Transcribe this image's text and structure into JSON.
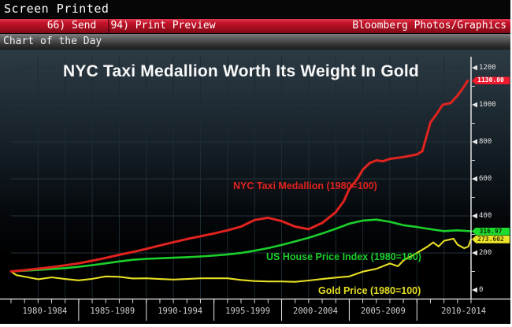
{
  "window": {
    "status_text": "Screen Printed"
  },
  "menu_bar": {
    "send": "66) Send",
    "print_preview": "94) Print Preview",
    "source": "Bloomberg Photos/Graphics"
  },
  "section_bar": {
    "title": "Chart of the Day"
  },
  "chart_data": {
    "type": "line",
    "title": "NYC Taxi Medallion Worth Its Weight In Gold",
    "grid": true,
    "background": "dark-terminal-black",
    "legend_position": "inline-labels-on-lines",
    "x_axis": {
      "range": [
        1980,
        2014
      ],
      "period_labels": [
        "1980-1984",
        "1985-1989",
        "1990-1994",
        "1995-1999",
        "2000-2004",
        "2005-2009",
        "2010-2014"
      ]
    },
    "y_axis": {
      "side": "right",
      "ticks": [
        0,
        200,
        400,
        600,
        800,
        1000,
        1200
      ],
      "range": [
        0,
        1260
      ]
    },
    "series": [
      {
        "name": "NYC Taxi Medallion (1980=100)",
        "color": "#e0231f",
        "last_value_badge": "1130.00",
        "x": [
          1980,
          1981,
          1982,
          1983,
          1984,
          1985,
          1986,
          1987,
          1988,
          1989,
          1990,
          1991,
          1992,
          1993,
          1994,
          1995,
          1996,
          1997,
          1998,
          1999,
          2000,
          2001,
          2002,
          2003,
          2004,
          2004.6,
          2005,
          2005.6,
          2006,
          2006.5,
          2007,
          2007.5,
          2008,
          2009,
          2010,
          2010.4,
          2011,
          2011.5,
          2011.9,
          2012.5,
          2013,
          2013.4,
          2013.75
        ],
        "values": [
          100,
          107,
          115,
          123,
          133,
          144,
          158,
          173,
          190,
          205,
          222,
          240,
          258,
          275,
          290,
          305,
          322,
          342,
          378,
          390,
          372,
          342,
          328,
          362,
          420,
          480,
          545,
          600,
          650,
          685,
          700,
          695,
          708,
          718,
          732,
          750,
          905,
          955,
          1000,
          1010,
          1050,
          1090,
          1130
        ]
      },
      {
        "name": "US House Price Index (1980=100)",
        "color": "#1bcf2c",
        "last_value_badge": "316.97",
        "x": [
          1980,
          1981,
          1982,
          1983,
          1984,
          1985,
          1986,
          1987,
          1988,
          1989,
          1990,
          1991,
          1992,
          1993,
          1994,
          1995,
          1996,
          1997,
          1998,
          1999,
          2000,
          2001,
          2002,
          2003,
          2004,
          2005,
          2006,
          2007,
          2008,
          2009,
          2010,
          2011,
          2012,
          2013,
          2014
        ],
        "values": [
          100,
          104,
          108,
          113,
          118,
          125,
          134,
          144,
          154,
          163,
          168,
          171,
          174,
          177,
          181,
          186,
          192,
          200,
          212,
          226,
          243,
          262,
          282,
          305,
          330,
          358,
          375,
          380,
          368,
          350,
          340,
          328,
          318,
          322,
          316.97
        ]
      },
      {
        "name": "Gold Price (1980=100)",
        "color": "#e6de24",
        "last_value_badge": "273.602",
        "x": [
          1980,
          1980.4,
          1981,
          1982,
          1983,
          1984,
          1985,
          1986,
          1987,
          1988,
          1989,
          1990,
          1991,
          1992,
          1993,
          1994,
          1995,
          1996,
          1997,
          1998,
          1999,
          2000,
          2001,
          2002,
          2003,
          2004,
          2005,
          2006,
          2007,
          2008,
          2008.6,
          2009,
          2010,
          2010.8,
          2011.2,
          2011.6,
          2012,
          2012.7,
          2013,
          2013.5,
          2013.8,
          2014
        ],
        "values": [
          100,
          80,
          72,
          58,
          68,
          59,
          52,
          60,
          73,
          71,
          62,
          63,
          59,
          56,
          59,
          63,
          63,
          63,
          54,
          48,
          46,
          46,
          44,
          51,
          59,
          67,
          73,
          99,
          114,
          143,
          128,
          159,
          200,
          235,
          257,
          235,
          265,
          277,
          245,
          225,
          235,
          273.602
        ]
      }
    ]
  }
}
